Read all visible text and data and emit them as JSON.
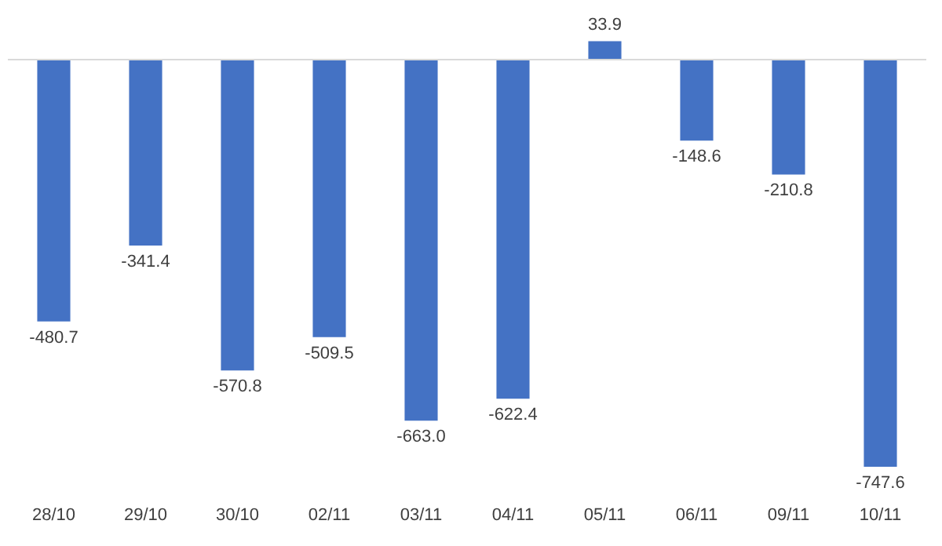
{
  "chart_data": {
    "type": "bar",
    "categories": [
      "28/10",
      "29/10",
      "30/10",
      "02/11",
      "03/11",
      "04/11",
      "05/11",
      "06/11",
      "09/11",
      "10/11"
    ],
    "values": [
      -480.7,
      -341.4,
      -570.8,
      -509.5,
      -663.0,
      -622.4,
      33.9,
      -148.6,
      -210.8,
      -747.6
    ],
    "value_labels": [
      "-480.7",
      "-341.4",
      "-570.8",
      "-509.5",
      "-663.0",
      "-622.4",
      "33.9",
      "-148.6",
      "-210.8",
      "-747.6"
    ],
    "color": "#4472c4",
    "tick_labels": "x",
    "grid": false,
    "legend": false
  }
}
